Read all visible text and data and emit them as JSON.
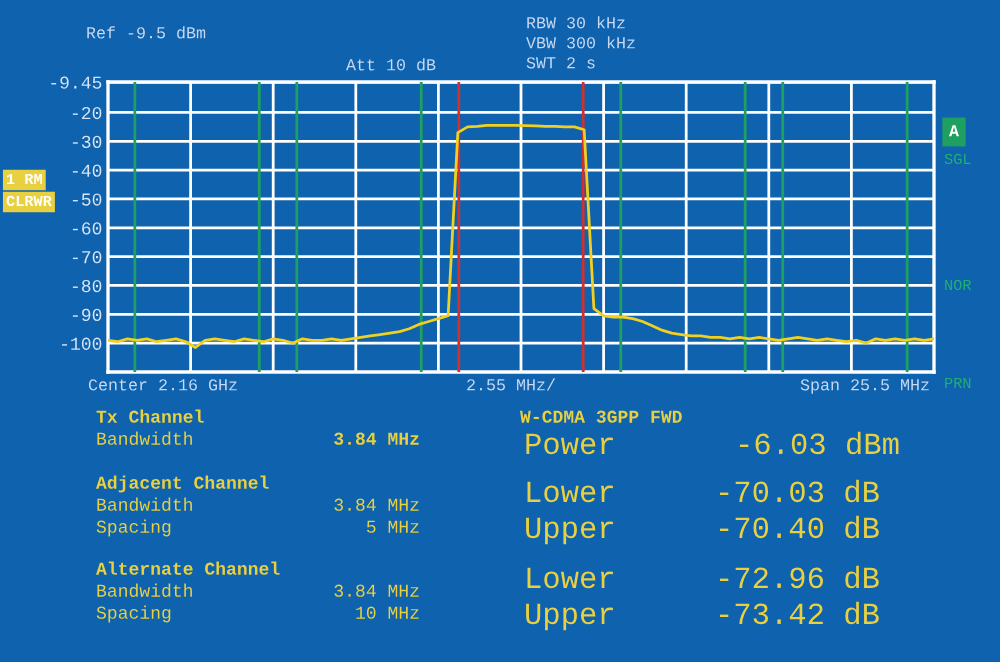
{
  "chart_data": {
    "type": "line",
    "categories": [
      null,
      null,
      null,
      null,
      null,
      null,
      null,
      null,
      null,
      null,
      null,
      null,
      null,
      null,
      null,
      null,
      null,
      null,
      null,
      null,
      null,
      null,
      null,
      null,
      null,
      null,
      null,
      null,
      null,
      null,
      null,
      null,
      null,
      null,
      null,
      null,
      null,
      null,
      null,
      null,
      null,
      null,
      null,
      null,
      null,
      null,
      null,
      null,
      null,
      null,
      null,
      null,
      null,
      null,
      null,
      null,
      null,
      null,
      null,
      null,
      null,
      null,
      null,
      null,
      null,
      null,
      null,
      null,
      null,
      null,
      null,
      null,
      null,
      null,
      null,
      null,
      null,
      null,
      null,
      null,
      null,
      null,
      null,
      null,
      null,
      null
    ],
    "series": [
      {
        "color": "#f0d020",
        "values": [
          -99,
          -99.5,
          -98.5,
          -99,
          -98.5,
          -99.5,
          -99,
          -98.5,
          -99.5,
          -101.5,
          -99,
          -98.5,
          -99,
          -99.5,
          -98.5,
          -99,
          -99.5,
          -98.5,
          -99,
          -100,
          -98.5,
          -99,
          -99,
          -98.5,
          -99,
          -98.5,
          -98,
          -97.5,
          -97,
          -96.5,
          -96,
          -95,
          -93.5,
          -92.5,
          -91.5,
          -90.5,
          -27,
          -25,
          -24.8,
          -24.5,
          -24.5,
          -24.5,
          -24.5,
          -24.6,
          -24.7,
          -24.8,
          -24.8,
          -25,
          -25,
          -26,
          -88,
          -90.5,
          -91,
          -91,
          -91.5,
          -92.5,
          -94,
          -95.5,
          -96.5,
          -97,
          -97.5,
          -97.5,
          -98,
          -98,
          -98.5,
          -98,
          -98.5,
          -98,
          -98.5,
          -99,
          -98.5,
          -98,
          -98.5,
          -99,
          -98.5,
          -99,
          -99.5,
          -99,
          -100,
          -98.5,
          -99,
          -98.5,
          -99,
          -98.5,
          -99,
          -98.5
        ]
      }
    ],
    "ylim": [
      -110,
      -9.45
    ],
    "yticks": [
      -9.45,
      -20,
      -30,
      -40,
      -50,
      -60,
      -70,
      -80,
      -90,
      -100
    ],
    "tick_labels": "y",
    "grid": true,
    "marker": "none",
    "line_style": "solid",
    "annotations": [
      "Ref -9.5 dBm",
      "Att 10 dB",
      "RBW 30 kHz",
      "VBW 300 kHz",
      "SWT 2 s",
      "1 RM",
      "CLRWR",
      "A",
      "SGL",
      "NOR",
      "PRN",
      "Center 2.16 GHz",
      "2.55 MHz/",
      "Span 25.5 MHz",
      "Tx Channel",
      "Bandwidth",
      "3.84 MHz",
      "Adjacent Channel",
      "Bandwidth",
      "3.84 MHz",
      "Spacing",
      "5 MHz",
      "Alternate Channel",
      "Bandwidth",
      "3.84 MHz",
      "Spacing",
      "10 MHz",
      "W-CDMA 3GPP FWD",
      "Power",
      "-6.03 dBm",
      "Lower",
      "-70.03 dB",
      "Upper",
      "-70.40 dB",
      "Lower",
      "-72.96 dB",
      "Upper",
      "-73.42 dB"
    ]
  }
}
